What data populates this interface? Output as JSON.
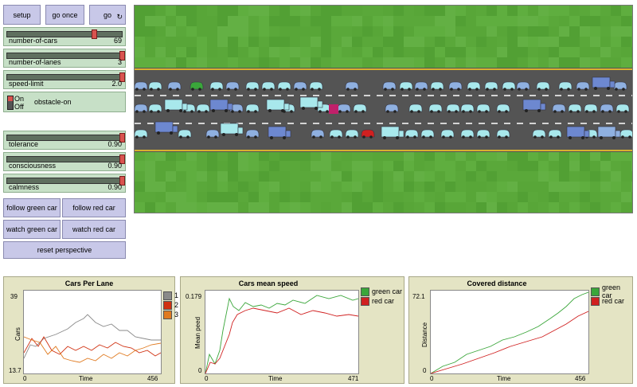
{
  "buttons": {
    "setup": "setup",
    "go_once": "go once",
    "go": "go",
    "go_forever_icon": "↻"
  },
  "sliders": [
    {
      "label": "number-of-cars",
      "value": "69",
      "fraction": 0.8
    },
    {
      "label": "number-of-lanes",
      "value": "3",
      "fraction": 1.0
    },
    {
      "label": "speed-limit",
      "value": "2.0",
      "fraction": 1.0
    }
  ],
  "switch": {
    "label": "obstacle-on",
    "on": "On",
    "off": "Off"
  },
  "sliders2": [
    {
      "label": "tolerance",
      "value": "0.90",
      "fraction": 1.0
    },
    {
      "label": "consciousness",
      "value": "0.90",
      "fraction": 1.0
    },
    {
      "label": "calmness",
      "value": "0.90",
      "fraction": 1.0
    }
  ],
  "view_buttons": {
    "follow_green": "follow green car",
    "follow_red": "follow red car",
    "watch_green": "watch green car",
    "watch_red": "watch red car",
    "reset": "reset perspective"
  },
  "colors": {
    "grass": "#5aa83a",
    "road": "#545454",
    "lane_line": "#ffffff",
    "edge_line": "#d8b030",
    "car_blue": "#8fb0e0",
    "car_cyan": "#a8e8ec",
    "truck": "#6d88d0",
    "obstacle": "#c0206a",
    "green_car": "#3aa63a",
    "red_car": "#d02020"
  },
  "plots": [
    {
      "title": "Cars Per Lane",
      "ylabel": "Cars",
      "xlabel": "Time",
      "ymax": "39",
      "ymin": "13.7",
      "xmin": "0",
      "xmax": "456",
      "legend": [
        {
          "name": "1",
          "color": "#8a8a8a"
        },
        {
          "name": "2",
          "color": "#d03010"
        },
        {
          "name": "3",
          "color": "#e07a20"
        }
      ]
    },
    {
      "title": "Cars mean speed",
      "ylabel": "Mean peed",
      "xlabel": "Time",
      "ymax": "0.179",
      "ymin": "0",
      "xmin": "0",
      "xmax": "471",
      "legend": [
        {
          "name": "green car",
          "color": "#3aa63a"
        },
        {
          "name": "red car",
          "color": "#d02020"
        }
      ]
    },
    {
      "title": "Covered distance",
      "ylabel": "Distance",
      "xlabel": "Time",
      "ymax": "72.1",
      "ymin": "0",
      "xmin": "0",
      "xmax": "456",
      "legend": [
        {
          "name": "green car",
          "color": "#3aa63a"
        },
        {
          "name": "red car",
          "color": "#d02020"
        }
      ]
    }
  ]
}
